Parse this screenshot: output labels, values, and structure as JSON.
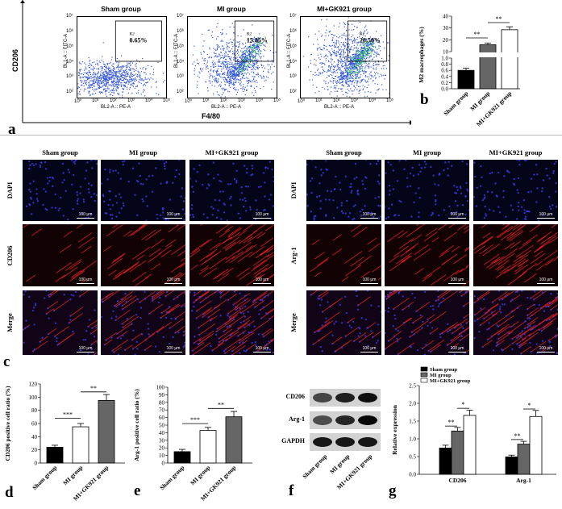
{
  "panels": {
    "a": "a",
    "b": "b",
    "c": "c",
    "d": "d",
    "e": "e",
    "f": "f",
    "g": "g"
  },
  "groups": [
    "Sham group",
    "MI group",
    "MI+GK921 group"
  ],
  "flow": {
    "ylabel": "CD206",
    "xlabel": "F4/80",
    "axis_y": "BL1-A :: FITC-A",
    "axis_x": "BL2-A :: PE-A",
    "gate": "R2",
    "percents": [
      "0.65%",
      "15.85%",
      "28.50%"
    ],
    "yticks": [
      "10⁷",
      "10⁶",
      "10⁵",
      "10⁴",
      "10³",
      "10²"
    ],
    "xticks": [
      "10⁰",
      "10¹",
      "10²",
      "10³",
      "10⁴",
      "10⁵"
    ]
  },
  "micro": {
    "left_rows": [
      "DAPI",
      "CD206",
      "Merge"
    ],
    "right_rows": [
      "DAPI",
      "Arg-1",
      "Merge"
    ],
    "scale": "100 μm"
  },
  "blot": {
    "labels": [
      "CD206",
      "Arg-1",
      "GAPDH"
    ]
  },
  "sig": {
    "two": "**",
    "three": "***",
    "one": "*"
  },
  "chart_data": [
    {
      "type": "bar",
      "id": "b",
      "categories": [
        "Sham group",
        "MI group",
        "MI+GK921 group"
      ],
      "values": [
        0.6,
        15.8,
        28.5
      ],
      "errors": [
        0.07,
        1.5,
        2.5
      ],
      "ylabel": "M2 macrophages (%)",
      "yticks_low": [
        "0.0",
        "0.2",
        "0.4",
        "0.6",
        "0.8",
        "1.0"
      ],
      "yticks_high": [
        "10",
        "20",
        "30",
        "40"
      ]
    },
    {
      "type": "bar",
      "id": "d",
      "categories": [
        "Sham group",
        "MI group",
        "MI+GK921 group"
      ],
      "values": [
        24,
        55,
        95
      ],
      "errors": [
        3,
        5,
        9
      ],
      "ylabel": "CD206 positive cell ratio (%)",
      "ylim": [
        0,
        120
      ],
      "yticks": [
        "0",
        "20",
        "40",
        "60",
        "80",
        "100",
        "120"
      ]
    },
    {
      "type": "bar",
      "id": "e",
      "categories": [
        "Sham group",
        "MI group",
        "MI+GK921 group"
      ],
      "values": [
        15,
        43,
        61
      ],
      "errors": [
        3,
        4,
        7
      ],
      "ylabel": "Arg-1 positive cell ratio (%)",
      "ylim": [
        0,
        100
      ],
      "yticks": [
        "0",
        "10",
        "20",
        "30",
        "40",
        "50",
        "60",
        "70",
        "80",
        "90",
        "100"
      ]
    },
    {
      "type": "bar",
      "id": "g",
      "categories": [
        "CD206",
        "Arg-1"
      ],
      "series": [
        {
          "name": "Sham group",
          "values": [
            0.74,
            0.49
          ],
          "errors": [
            0.08,
            0.05
          ],
          "color": "#000000"
        },
        {
          "name": "MI group",
          "values": [
            1.22,
            0.85
          ],
          "errors": [
            0.1,
            0.08
          ],
          "color": "#666666"
        },
        {
          "name": "MI+GK921 group",
          "values": [
            1.66,
            1.63
          ],
          "errors": [
            0.15,
            0.17
          ],
          "color": "#ffffff"
        }
      ],
      "ylabel": "Relative expression",
      "ylim": [
        0,
        2.5
      ],
      "yticks": [
        "0.0",
        "0.5",
        "1.0",
        "1.5",
        "2.0",
        "2.5"
      ]
    }
  ]
}
